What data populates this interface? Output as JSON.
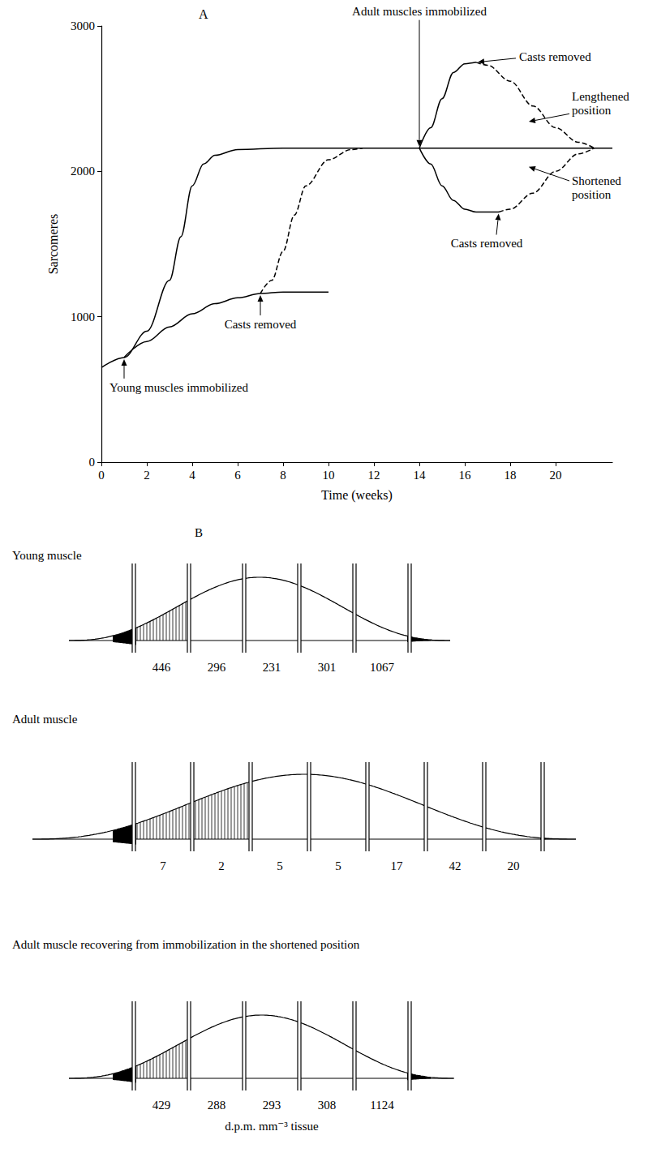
{
  "chart_data": {
    "type": "line",
    "title": "A",
    "xlabel": "Time (weeks)",
    "ylabel": "Sarcomeres",
    "xlim": [
      0,
      22.5
    ],
    "xticks": [
      0,
      2,
      4,
      6,
      8,
      10,
      12,
      14,
      16,
      18,
      20
    ],
    "ylim": [
      0,
      3000
    ],
    "yticks": [
      0,
      1000,
      2000,
      3000
    ],
    "grid": false,
    "series": [
      {
        "color": "#000000",
        "line_style": "solid",
        "x": [
          0,
          1,
          2,
          3,
          3.5,
          4,
          4.5,
          5,
          6,
          8,
          12,
          14,
          22.5
        ],
        "values": [
          650,
          720,
          900,
          1250,
          1550,
          1900,
          2050,
          2110,
          2150,
          2160,
          2160,
          2160,
          2160
        ]
      },
      {
        "color": "#000000",
        "line_style": "solid",
        "x": [
          1,
          2,
          3,
          4,
          5,
          6,
          7,
          8,
          10
        ],
        "values": [
          720,
          830,
          930,
          1020,
          1090,
          1130,
          1160,
          1170,
          1170
        ]
      },
      {
        "color": "#000000",
        "line_style": "dashed",
        "x": [
          7,
          7.5,
          8,
          8.5,
          9,
          10,
          11,
          11.5
        ],
        "values": [
          1160,
          1250,
          1450,
          1700,
          1900,
          2080,
          2150,
          2160
        ]
      },
      {
        "color": "#000000",
        "line_style": "solid",
        "x": [
          14,
          14.5,
          15,
          15.5,
          16,
          16.5
        ],
        "values": [
          2160,
          2300,
          2500,
          2680,
          2740,
          2750
        ]
      },
      {
        "color": "#000000",
        "line_style": "dashed",
        "x": [
          16.5,
          17,
          18,
          19,
          20,
          21,
          21.7
        ],
        "values": [
          2750,
          2730,
          2620,
          2450,
          2300,
          2200,
          2160
        ]
      },
      {
        "color": "#000000",
        "line_style": "solid",
        "x": [
          14,
          14.5,
          15,
          15.5,
          16,
          16.5,
          17.5
        ],
        "values": [
          2160,
          2050,
          1900,
          1800,
          1740,
          1720,
          1720
        ]
      },
      {
        "color": "#000000",
        "line_style": "dashed",
        "x": [
          17.5,
          18,
          19,
          20,
          21,
          21.7
        ],
        "values": [
          1720,
          1740,
          1850,
          2000,
          2120,
          2160
        ]
      }
    ],
    "annotations": [
      {
        "text": "Adult muscles immobilized",
        "x": 14,
        "y": 2160
      },
      {
        "text": "Casts removed",
        "x": 16.5,
        "y": 2750
      },
      {
        "text": "Lengthened position",
        "x": 18.75,
        "y": 2340
      },
      {
        "text": "Shortened position",
        "x": 18.75,
        "y": 2035
      },
      {
        "text": "Casts removed",
        "x": 17.5,
        "y": 1720
      },
      {
        "text": "Casts removed",
        "x": 7,
        "y": 1160
      },
      {
        "text": "Young muscles immobilized",
        "x": 1,
        "y": 720
      }
    ]
  },
  "diagram": {
    "label": "B",
    "panels": [
      {
        "title": "Young muscle",
        "values": [
          446,
          296,
          231,
          301,
          1067
        ]
      },
      {
        "title": "Adult muscle",
        "values": [
          7,
          2,
          5,
          5,
          17,
          42,
          20
        ]
      },
      {
        "title": "Adult muscle recovering from immobilization in the shortened position",
        "values": [
          429,
          288,
          293,
          308,
          1124
        ]
      }
    ],
    "unit": "d.p.m. mm⁻³ tissue"
  }
}
